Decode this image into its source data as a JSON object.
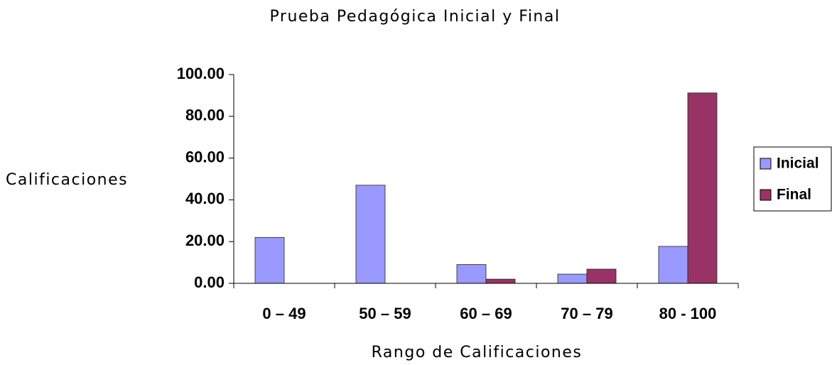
{
  "chart_data": {
    "type": "bar",
    "title": "Prueba Pedagógica Inicial y Final",
    "x_label": "Rango de Calificaciones",
    "y_label": "Calificaciones",
    "categories": [
      "0 – 49",
      "50 – 59",
      "60 – 69",
      "70 – 79",
      "80 - 100"
    ],
    "series": [
      {
        "name": "Inicial",
        "color": "#9999ff",
        "values": [
          22,
          47,
          9,
          4.4,
          17.7
        ]
      },
      {
        "name": "Final",
        "color": "#993366",
        "values": [
          0,
          0,
          2,
          6.8,
          91.2
        ]
      }
    ],
    "ylim": [
      0,
      100
    ],
    "yticks": [
      {
        "value": 0,
        "label": "0.00"
      },
      {
        "value": 20,
        "label": "20.00"
      },
      {
        "value": 40,
        "label": "40.00"
      },
      {
        "value": 60,
        "label": "60.00"
      },
      {
        "value": 80,
        "label": "80.00"
      },
      {
        "value": 100,
        "label": "100.00"
      }
    ],
    "legend": "right"
  }
}
